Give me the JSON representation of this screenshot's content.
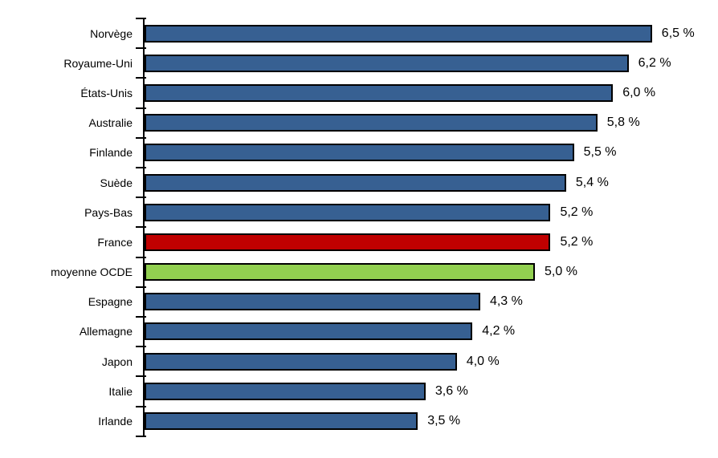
{
  "colors": {
    "bar_default": "#376092",
    "bar_highlight": "#C00000",
    "bar_average": "#92D050",
    "bar_border": "#000000",
    "axis": "#000000",
    "background": "#FFFFFF",
    "text": "#000000"
  },
  "chart_data": {
    "type": "bar",
    "orientation": "horizontal",
    "title": "",
    "xlabel": "",
    "ylabel": "",
    "xlim": [
      0,
      6.5
    ],
    "grid": false,
    "legend": false,
    "value_format": "comma_decimal_with_space_percent",
    "categories": [
      "Norvège",
      "Royaume-Uni",
      "États-Unis",
      "Australie",
      "Finlande",
      "Suède",
      "Pays-Bas",
      "France",
      "moyenne OCDE",
      "Espagne",
      "Allemagne",
      "Japon",
      "Italie",
      "Irlande"
    ],
    "values": [
      6.5,
      6.2,
      6.0,
      5.8,
      5.5,
      5.4,
      5.2,
      5.2,
      5.0,
      4.3,
      4.2,
      4.0,
      3.6,
      3.5
    ],
    "value_labels": [
      "6,5 %",
      "6,2 %",
      "6,0 %",
      "5,8 %",
      "5,5 %",
      "5,4 %",
      "5,2 %",
      "5,2 %",
      "5,0 %",
      "4,3 %",
      "4,2 %",
      "4,0 %",
      "3,6 %",
      "3,5 %"
    ],
    "bar_colors": [
      "#376092",
      "#376092",
      "#376092",
      "#376092",
      "#376092",
      "#376092",
      "#376092",
      "#C00000",
      "#92D050",
      "#376092",
      "#376092",
      "#376092",
      "#376092",
      "#376092"
    ],
    "highlighted_category": "France",
    "average_category": "moyenne OCDE"
  }
}
